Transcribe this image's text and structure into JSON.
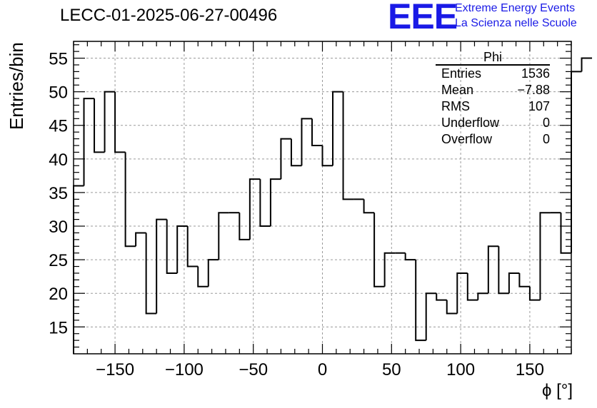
{
  "chart_data": {
    "type": "histogram",
    "title": "LECC-01-2025-06-27-00496",
    "xlabel": "ϕ [°]",
    "ylabel": "Entries/bin",
    "xlim": [
      -180,
      180
    ],
    "ylim": [
      11,
      57.5
    ],
    "x_ticks": [
      -150,
      -100,
      -50,
      0,
      50,
      100,
      150
    ],
    "x_tick_labels": [
      "−150",
      "−100",
      "−50",
      "0",
      "50",
      "100",
      "150"
    ],
    "y_ticks": [
      15,
      20,
      25,
      30,
      35,
      40,
      45,
      50,
      55
    ],
    "y_tick_labels": [
      "15",
      "20",
      "25",
      "30",
      "35",
      "40",
      "45",
      "50",
      "55"
    ],
    "bin_edges_start": -180,
    "bin_width": 7.5,
    "values": [
      36,
      49,
      41,
      50,
      41,
      27,
      29,
      17,
      31,
      23,
      30,
      24,
      21,
      25,
      32,
      32,
      28,
      37,
      30,
      37,
      43,
      39,
      46,
      42,
      39,
      50,
      34,
      34,
      32,
      21,
      26,
      26,
      25,
      13,
      20,
      19,
      17,
      23,
      19,
      20,
      27,
      20,
      23,
      21,
      19,
      32,
      32,
      26,
      53,
      55
    ],
    "grid": true,
    "stats_box": {
      "title": "Phi",
      "rows": [
        {
          "label": "Entries",
          "value": "1536"
        },
        {
          "label": "Mean",
          "value": "−7.88"
        },
        {
          "label": "RMS",
          "value": "107"
        },
        {
          "label": "Underflow",
          "value": "0"
        },
        {
          "label": "Overflow",
          "value": "0"
        }
      ]
    }
  },
  "logo": {
    "mark": "EEE",
    "line1": "Extreme Energy Events",
    "line2": "La Scienza nelle Scuole"
  },
  "colors": {
    "logo": "#1a1ae6",
    "line": "#000000",
    "grid": "#9a9a9a"
  }
}
